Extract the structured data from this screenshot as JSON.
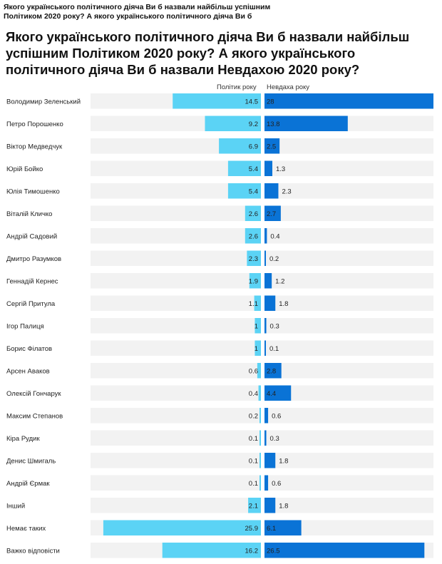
{
  "header": {
    "top_title": "Якого українського політичного діяча Ви б назвали найбільш успішним Політиком 2020 року? А якого українського політичного діяча Ви б назвали Невдахою 2020 року?"
  },
  "chart_data": {
    "type": "bar",
    "title": "Якого українського політичного діяча Ви б назвали найбільш успішним Політиком 2020 року? А якого українського політичного діяча Ви б назвали Невдахою 2020 року?",
    "categories": [
      "Володимир Зеленський",
      "Петро Порошенко",
      "Віктор Медведчук",
      "Юрій Бойко",
      "Юлія Тимошенко",
      "Віталій Кличко",
      "Андрій Садовий",
      "Дмитро Разумков",
      "Геннадій Кернес",
      "Сергій Притула",
      "Ігор Палиця",
      "Борис Філатов",
      "Арсен Аваков",
      "Олексій Гончарук",
      "Максим Степанов",
      "Кіра Рудик",
      "Денис Шмигаль",
      "Андрій Єрмак",
      "Інший",
      "Немає таких",
      "Важко відповісти"
    ],
    "series": [
      {
        "name": "Політик року",
        "color": "#5bd3f5",
        "values": [
          14.5,
          9.2,
          6.9,
          5.4,
          5.4,
          2.6,
          2.6,
          2.3,
          1.9,
          1.1,
          1,
          1,
          0.6,
          0.4,
          0.2,
          0.1,
          0.1,
          0.1,
          2.1,
          25.9,
          16.2
        ]
      },
      {
        "name": "Невдаха року",
        "color": "#0a73d6",
        "values": [
          28,
          13.8,
          2.5,
          1.3,
          2.3,
          2.7,
          0.4,
          0.2,
          1.2,
          1.8,
          0.3,
          0.1,
          2.8,
          4.4,
          0.6,
          0.3,
          1.8,
          0.6,
          1.8,
          6.1,
          26.5
        ]
      }
    ],
    "grid": false,
    "legend": "top"
  }
}
